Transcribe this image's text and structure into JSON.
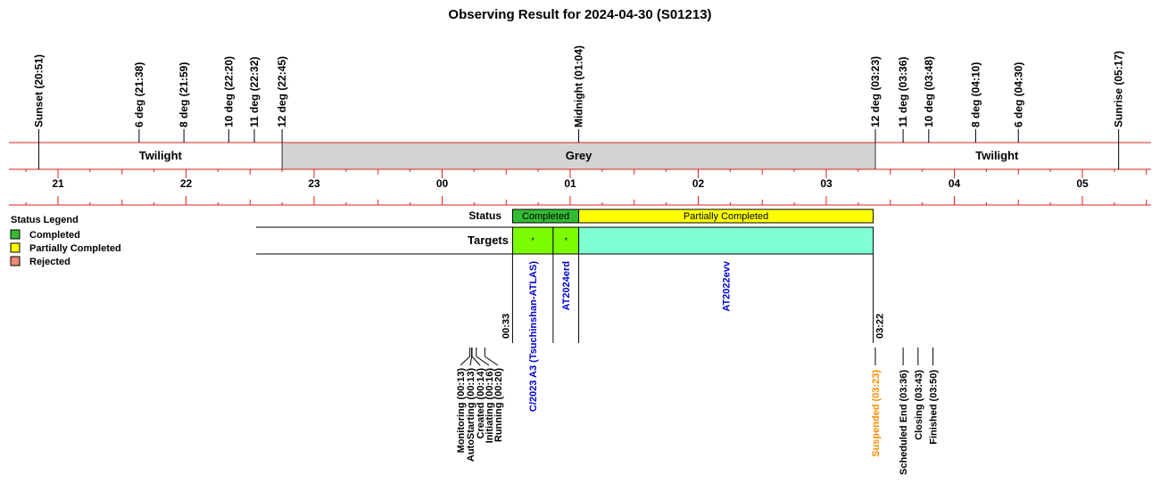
{
  "title": "Observing Result for 2024-04-30 (S01213)",
  "twilight_events": [
    {
      "label": "Sunset (20:51)",
      "time": "20:51"
    },
    {
      "label": "6 deg (21:38)",
      "time": "21:38"
    },
    {
      "label": "8 deg (21:59)",
      "time": "21:59"
    },
    {
      "label": "10 deg (22:20)",
      "time": "22:20"
    },
    {
      "label": "11 deg (22:32)",
      "time": "22:32"
    },
    {
      "label": "12 deg (22:45)",
      "time": "22:45"
    },
    {
      "label": "Midnight (01:04)",
      "time": "01:04"
    },
    {
      "label": "12 deg (03:23)",
      "time": "03:23"
    },
    {
      "label": "11 deg (03:36)",
      "time": "03:36"
    },
    {
      "label": "10 deg (03:48)",
      "time": "03:48"
    },
    {
      "label": "8 deg (04:10)",
      "time": "04:10"
    },
    {
      "label": "6 deg (04:30)",
      "time": "04:30"
    },
    {
      "label": "Sunrise (05:17)",
      "time": "05:17"
    }
  ],
  "sky_bands": [
    {
      "label": "Twilight",
      "start": "20:51",
      "end": "22:45",
      "color": "#ffffff"
    },
    {
      "label": "Grey",
      "start": "22:45",
      "end": "03:23",
      "color": "#d3d3d3"
    },
    {
      "label": "Twilight",
      "start": "03:23",
      "end": "05:17",
      "color": "#ffffff"
    }
  ],
  "hour_labels": [
    "21",
    "22",
    "23",
    "00",
    "01",
    "02",
    "03",
    "04",
    "05"
  ],
  "legend": {
    "title": "Status Legend",
    "items": [
      {
        "label": "Completed",
        "color": "#33bb33"
      },
      {
        "label": "Partially Completed",
        "color": "#ffff00"
      },
      {
        "label": "Rejected",
        "color": "#ee8877"
      }
    ]
  },
  "rows": {
    "status_label": "Status",
    "targets_label": "Targets"
  },
  "status_bars": [
    {
      "label": "Completed",
      "start": "00:33",
      "end": "01:04",
      "color": "#33bb33"
    },
    {
      "label": "Partially Completed",
      "start": "01:04",
      "end": "03:22",
      "color": "#ffff00"
    }
  ],
  "target_bars": [
    {
      "name": "C/2023 A3 (Tsuchinshan-ATLAS)",
      "start": "00:33",
      "end": "00:52",
      "color": "#7cfc00",
      "mark": "*"
    },
    {
      "name": "AT2024erd",
      "start": "00:52",
      "end": "01:04",
      "color": "#7cfc00",
      "mark": "*"
    },
    {
      "name": "AT2022evv",
      "start": "01:04",
      "end": "03:22",
      "color": "#7fffd4",
      "mark": ""
    }
  ],
  "time_markers": [
    {
      "label": "00:33",
      "time": "00:33"
    },
    {
      "label": "03:22",
      "time": "03:22"
    }
  ],
  "state_events": [
    {
      "label": "Monitoring (00:13)",
      "time": "00:13",
      "color": "#000000"
    },
    {
      "label": "AutoStarting (00:13)",
      "time": "00:13",
      "color": "#000000"
    },
    {
      "label": "Created (00:14)",
      "time": "00:14",
      "color": "#000000"
    },
    {
      "label": "Initiating (00:16)",
      "time": "00:16",
      "color": "#000000"
    },
    {
      "label": "Running (00:20)",
      "time": "00:20",
      "color": "#000000"
    },
    {
      "label": "Suspended (03:23)",
      "time": "03:23",
      "color": "#ff8c00"
    },
    {
      "label": "Scheduled End (03:36)",
      "time": "03:36",
      "color": "#000000"
    },
    {
      "label": "Closing (03:43)",
      "time": "03:43",
      "color": "#000000"
    },
    {
      "label": "Finished (03:50)",
      "time": "03:50",
      "color": "#000000"
    }
  ],
  "colors": {
    "grid_line": "#dd2222",
    "target_name": "#0000cc",
    "suspended": "#ff8c00"
  }
}
